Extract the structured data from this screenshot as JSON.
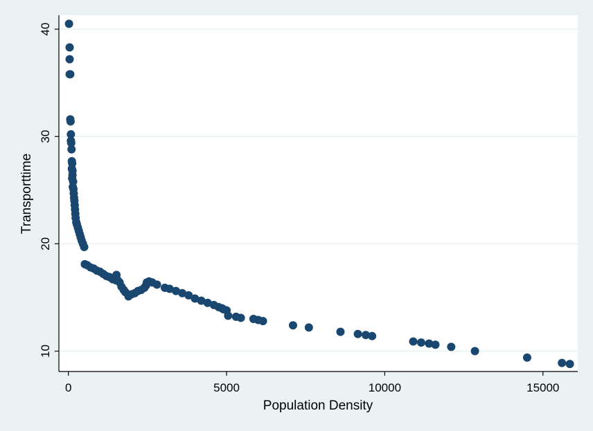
{
  "chart_data": {
    "type": "scatter",
    "title": "",
    "xlabel": "Population Density",
    "ylabel": "Transporttime",
    "xlim": [
      -300,
      16100
    ],
    "ylim": [
      8.1,
      41.3
    ],
    "xticks": [
      0,
      5000,
      10000,
      15000
    ],
    "yticks": [
      10,
      20,
      30,
      40
    ],
    "grid": "horizontal",
    "legend": "none",
    "colors": {
      "marker": "#1a476f",
      "plot_bg": "#ffffff",
      "page_bg": "#eaf2f3",
      "grid": "#eaf2f3"
    },
    "points": [
      [
        20,
        40.5
      ],
      [
        40,
        38.3
      ],
      [
        40,
        37.2
      ],
      [
        40,
        35.8
      ],
      [
        60,
        35.8
      ],
      [
        60,
        31.6
      ],
      [
        70,
        31.4
      ],
      [
        80,
        30.2
      ],
      [
        80,
        29.6
      ],
      [
        90,
        29.4
      ],
      [
        100,
        28.8
      ],
      [
        110,
        27.7
      ],
      [
        120,
        27.5
      ],
      [
        110,
        27.0
      ],
      [
        130,
        26.8
      ],
      [
        130,
        26.4
      ],
      [
        120,
        26.1
      ],
      [
        150,
        25.8
      ],
      [
        140,
        25.3
      ],
      [
        160,
        25.1
      ],
      [
        170,
        24.7
      ],
      [
        180,
        24.3
      ],
      [
        190,
        24.0
      ],
      [
        200,
        23.6
      ],
      [
        210,
        23.2
      ],
      [
        220,
        22.8
      ],
      [
        230,
        22.4
      ],
      [
        250,
        22.0
      ],
      [
        270,
        21.8
      ],
      [
        300,
        21.5
      ],
      [
        330,
        21.2
      ],
      [
        360,
        20.9
      ],
      [
        390,
        20.6
      ],
      [
        420,
        20.3
      ],
      [
        460,
        20.0
      ],
      [
        500,
        19.7
      ],
      [
        520,
        18.1
      ],
      [
        600,
        18.0
      ],
      [
        700,
        17.8
      ],
      [
        800,
        17.7
      ],
      [
        900,
        17.5
      ],
      [
        1000,
        17.4
      ],
      [
        1100,
        17.2
      ],
      [
        1200,
        17.0
      ],
      [
        1300,
        16.9
      ],
      [
        1400,
        16.7
      ],
      [
        1500,
        16.6
      ],
      [
        1520,
        17.1
      ],
      [
        1560,
        16.6
      ],
      [
        1620,
        16.4
      ],
      [
        1680,
        16.0
      ],
      [
        1750,
        15.7
      ],
      [
        1800,
        15.5
      ],
      [
        1900,
        15.1
      ],
      [
        2000,
        15.3
      ],
      [
        2100,
        15.4
      ],
      [
        2200,
        15.6
      ],
      [
        2300,
        15.7
      ],
      [
        2400,
        15.9
      ],
      [
        2450,
        16.1
      ],
      [
        2480,
        16.4
      ],
      [
        2550,
        16.5
      ],
      [
        2650,
        16.4
      ],
      [
        2800,
        16.2
      ],
      [
        3050,
        15.9
      ],
      [
        3200,
        15.8
      ],
      [
        3400,
        15.6
      ],
      [
        3600,
        15.4
      ],
      [
        3800,
        15.2
      ],
      [
        4000,
        14.9
      ],
      [
        4200,
        14.7
      ],
      [
        4400,
        14.5
      ],
      [
        4600,
        14.3
      ],
      [
        4750,
        14.1
      ],
      [
        4850,
        14.0
      ],
      [
        4900,
        13.9
      ],
      [
        5000,
        13.8
      ],
      [
        5050,
        13.3
      ],
      [
        5300,
        13.2
      ],
      [
        5450,
        13.1
      ],
      [
        5850,
        13.0
      ],
      [
        6000,
        12.9
      ],
      [
        6150,
        12.8
      ],
      [
        7100,
        12.4
      ],
      [
        7600,
        12.2
      ],
      [
        8600,
        11.8
      ],
      [
        9150,
        11.6
      ],
      [
        9400,
        11.5
      ],
      [
        9600,
        11.4
      ],
      [
        10900,
        10.9
      ],
      [
        11150,
        10.8
      ],
      [
        11400,
        10.7
      ],
      [
        11600,
        10.6
      ],
      [
        12100,
        10.4
      ],
      [
        12850,
        10.0
      ],
      [
        14500,
        9.4
      ],
      [
        15600,
        8.9
      ],
      [
        15850,
        8.8
      ]
    ]
  }
}
